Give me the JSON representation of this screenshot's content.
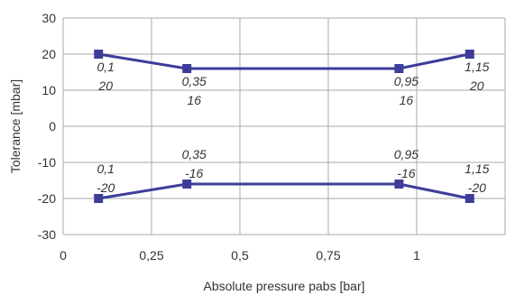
{
  "chart_data": {
    "type": "line",
    "title": "",
    "xlabel": "Absolute pressure pabs [bar]",
    "ylabel": "Tolerance [mbar]",
    "xlim": [
      0,
      1.25
    ],
    "ylim": [
      -30,
      30
    ],
    "x_ticks": [
      {
        "value": 0,
        "label": "0"
      },
      {
        "value": 0.25,
        "label": "0,25"
      },
      {
        "value": 0.5,
        "label": "0,5"
      },
      {
        "value": 0.75,
        "label": "0,75"
      },
      {
        "value": 1,
        "label": "1"
      }
    ],
    "y_ticks": [
      {
        "value": 30,
        "label": "30"
      },
      {
        "value": 20,
        "label": "20"
      },
      {
        "value": 10,
        "label": "10"
      },
      {
        "value": 0,
        "label": "0"
      },
      {
        "value": -10,
        "label": "-10"
      },
      {
        "value": -20,
        "label": "-20"
      },
      {
        "value": -30,
        "label": "-30"
      }
    ],
    "grid": true,
    "legend": "none",
    "series_color": "#3d3d99",
    "series": [
      {
        "points": [
          {
            "x": 0.1,
            "y": 20,
            "label_x": "0,1",
            "label_y": "20"
          },
          {
            "x": 0.35,
            "y": 16,
            "label_x": "0,35",
            "label_y": "16"
          },
          {
            "x": 0.95,
            "y": 16,
            "label_x": "0,95",
            "label_y": "16"
          },
          {
            "x": 1.15,
            "y": 20,
            "label_x": "1,15",
            "label_y": "20"
          }
        ]
      },
      {
        "points": [
          {
            "x": 0.1,
            "y": -20,
            "label_x": "0,1",
            "label_y": "-20"
          },
          {
            "x": 0.35,
            "y": -16,
            "label_x": "0,35",
            "label_y": "-16"
          },
          {
            "x": 0.95,
            "y": -16,
            "label_x": "0,95",
            "label_y": "-16"
          },
          {
            "x": 1.15,
            "y": -20,
            "label_x": "1,15",
            "label_y": "-20"
          }
        ]
      }
    ]
  }
}
